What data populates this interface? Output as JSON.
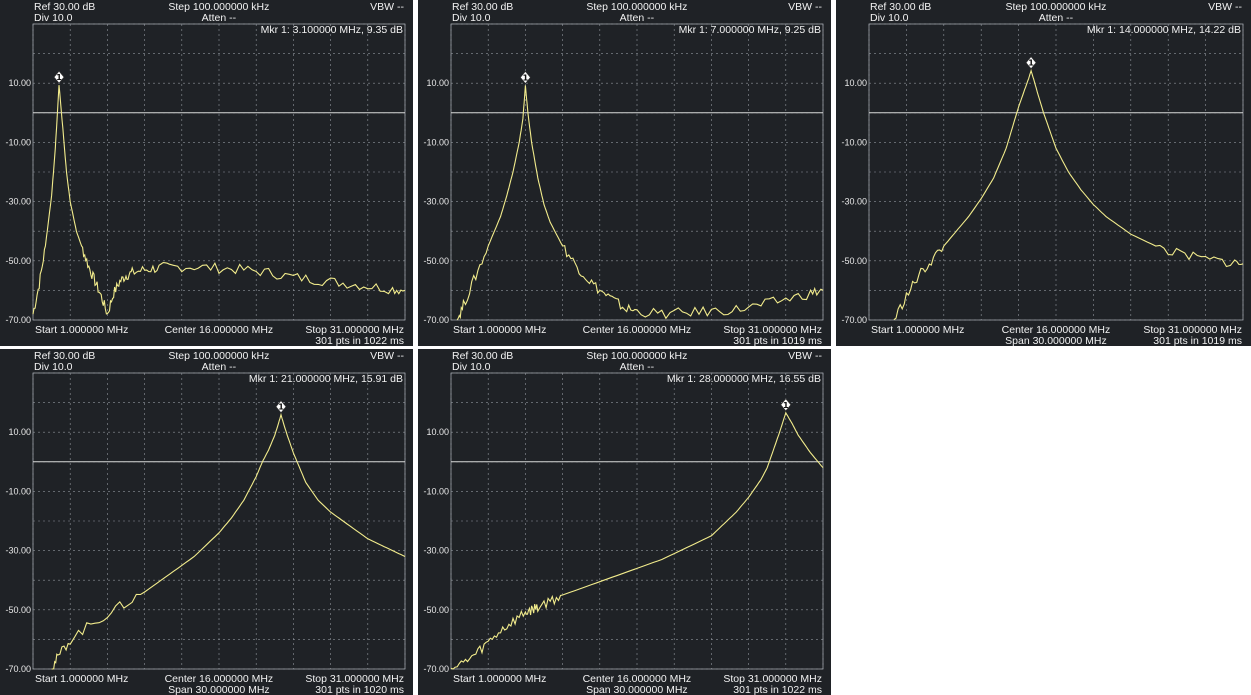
{
  "chart_data": [
    {
      "type": "line",
      "header": {
        "ref": "Ref 30.00 dB",
        "div": "Div 10.0",
        "step": "Step 100.000000 kHz",
        "atten": "Atten --",
        "vbw": "VBW --"
      },
      "marker_readout": "Mkr 1: 3.100000 MHz, 9.35 dB",
      "marker_label": "1",
      "marker": {
        "x": 3.1,
        "y": 9.35
      },
      "footer": {
        "start": "Start 1.000000 MHz",
        "center": "Center 16.000000 MHz",
        "stop": "Stop 31.000000 MHz",
        "span": "",
        "pts": "301 pts in 1022 ms"
      },
      "y_ticks": [
        "10.00",
        "-10.00",
        "-30.00",
        "-50.00",
        "-70.00"
      ],
      "xlim": [
        1,
        31
      ],
      "ylim": [
        -70,
        30
      ],
      "reference_line": 0,
      "series": [
        {
          "x": [
            1.0,
            1.5,
            2.0,
            2.5,
            2.8,
            3.1,
            3.4,
            3.7,
            4.0,
            4.5,
            5.0,
            5.5,
            6.0,
            6.5,
            7.0,
            7.5,
            8.0,
            8.5,
            9.0,
            10.0,
            11.0,
            12.0,
            14.0,
            16.0,
            18.0,
            20.0,
            22.0,
            24.0,
            26.0,
            28.0,
            30.0,
            31.0
          ],
          "y": [
            -68,
            -58,
            -45,
            -28,
            -12,
            9.35,
            -5,
            -20,
            -30,
            -40,
            -46,
            -52,
            -57,
            -62,
            -68,
            -61,
            -57,
            -55,
            -54,
            -53,
            -52.5,
            -52,
            -52,
            -52.5,
            -53,
            -54,
            -55.5,
            -56.5,
            -57.5,
            -58.5,
            -59.5,
            -60
          ]
        }
      ]
    },
    {
      "type": "line",
      "header": {
        "ref": "Ref 30.00 dB",
        "div": "Div 10.0",
        "step": "Step 100.000000 kHz",
        "atten": "Atten --",
        "vbw": "VBW --"
      },
      "marker_readout": "Mkr 1: 7.000000 MHz, 9.25 dB",
      "marker_label": "1",
      "marker": {
        "x": 7.0,
        "y": 9.25
      },
      "footer": {
        "start": "Start 1.000000 MHz",
        "center": "Center 16.000000 MHz",
        "stop": "Stop 31.000000 MHz",
        "span": "",
        "pts": "301 pts in 1019 ms"
      },
      "y_ticks": [
        "10.00",
        "-10.00",
        "-30.00",
        "-50.00",
        "-70.00"
      ],
      "xlim": [
        1,
        31
      ],
      "ylim": [
        -70,
        30
      ],
      "reference_line": 0,
      "series": [
        {
          "x": [
            1.5,
            2.0,
            3.0,
            4.0,
            5.0,
            5.5,
            6.0,
            6.5,
            6.8,
            7.0,
            7.2,
            7.5,
            8.0,
            8.5,
            9.0,
            10.0,
            11.0,
            12.0,
            13.0,
            14.0,
            15.0,
            16.0,
            18.0,
            20.0,
            22.0,
            24.0,
            26.0,
            28.0,
            30.0,
            31.0
          ],
          "y": [
            -70,
            -65,
            -55,
            -45,
            -35,
            -28,
            -20,
            -10,
            -2,
            9.25,
            0,
            -10,
            -22,
            -31,
            -37,
            -45,
            -51,
            -56,
            -60,
            -63,
            -66,
            -67,
            -68,
            -67.5,
            -67,
            -66.5,
            -65,
            -63,
            -61,
            -60
          ]
        }
      ]
    },
    {
      "type": "line",
      "header": {
        "ref": "Ref 30.00 dB",
        "div": "Div 10.0",
        "step": "Step 100.000000 kHz",
        "atten": "Atten --",
        "vbw": "VBW --"
      },
      "marker_readout": "Mkr 1: 14.000000 MHz, 14.22 dB",
      "marker_label": "1",
      "marker": {
        "x": 14.0,
        "y": 14.22
      },
      "footer": {
        "start": "Start 1.000000 MHz",
        "center": "Center 16.000000 MHz",
        "stop": "Stop 31.000000 MHz",
        "span": "Span 30.000000 MHz",
        "pts": "301 pts in 1019 ms"
      },
      "y_ticks": [
        "10.00",
        "-10.00",
        "-30.00",
        "-50.00",
        "-70.00"
      ],
      "xlim": [
        1,
        31
      ],
      "ylim": [
        -70,
        30
      ],
      "reference_line": 0,
      "series": [
        {
          "x": [
            3.0,
            4.0,
            5.0,
            6.0,
            7.0,
            8.0,
            9.0,
            10.0,
            11.0,
            12.0,
            12.5,
            13.0,
            13.5,
            13.8,
            14.0,
            14.2,
            14.5,
            15.0,
            15.5,
            16.0,
            17.0,
            18.0,
            19.0,
            20.0,
            22.0,
            24.0,
            26.0,
            28.0,
            30.0,
            31.0
          ],
          "y": [
            -70,
            -62,
            -55,
            -50,
            -45,
            -40,
            -35,
            -29,
            -22,
            -12,
            -5,
            2,
            8,
            11.5,
            14.22,
            11.5,
            7,
            0,
            -6,
            -12,
            -20,
            -26,
            -31,
            -35,
            -41,
            -45,
            -48,
            -49.5,
            -50.5,
            -51
          ]
        }
      ]
    },
    {
      "type": "line",
      "header": {
        "ref": "Ref 30.00 dB",
        "div": "Div 10.0",
        "step": "Step 100.000000 kHz",
        "atten": "Atten --",
        "vbw": "VBW --"
      },
      "marker_readout": "Mkr 1: 21.000000 MHz, 15.91 dB",
      "marker_label": "1",
      "marker": {
        "x": 21.0,
        "y": 15.91
      },
      "footer": {
        "start": "Start 1.000000 MHz",
        "center": "Center 16.000000 MHz",
        "stop": "Stop 31.000000 MHz",
        "span": "Span 30.000000 MHz",
        "pts": "301 pts in 1020 ms"
      },
      "y_ticks": [
        "10.00",
        "-10.00",
        "-30.00",
        "-50.00",
        "-70.00"
      ],
      "xlim": [
        1,
        31
      ],
      "ylim": [
        -70,
        30
      ],
      "reference_line": 0,
      "series": [
        {
          "x": [
            2.5,
            3.0,
            4.0,
            6.0,
            8.0,
            10.0,
            12.0,
            14.0,
            16.0,
            17.0,
            18.0,
            19.0,
            19.5,
            20.0,
            20.5,
            20.8,
            21.0,
            21.2,
            21.5,
            22.0,
            22.5,
            23.0,
            24.0,
            25.0,
            26.0,
            27.0,
            28.0,
            29.0,
            30.0,
            31.0
          ],
          "y": [
            -70,
            -66,
            -60,
            -54,
            -49,
            -44,
            -38,
            -32,
            -24,
            -19,
            -13,
            -5,
            0,
            4,
            9,
            13,
            15.91,
            13,
            9,
            3,
            -2,
            -7,
            -13,
            -17,
            -20,
            -23,
            -26,
            -28,
            -30,
            -32
          ]
        }
      ]
    },
    {
      "type": "line",
      "header": {
        "ref": "Ref 30.00 dB",
        "div": "Div 10.0",
        "step": "Step 100.000000 kHz",
        "atten": "Atten --",
        "vbw": "VBW --"
      },
      "marker_readout": "Mkr 1: 28.000000 MHz, 16.55 dB",
      "marker_label": "1",
      "marker": {
        "x": 28.0,
        "y": 16.55
      },
      "footer": {
        "start": "Start 1.000000 MHz",
        "center": "Center 16.000000 MHz",
        "stop": "Stop 31.000000 MHz",
        "span": "Span 30.000000 MHz",
        "pts": "301 pts in 1022 ms"
      },
      "y_ticks": [
        "10.00",
        "-10.00",
        "-30.00",
        "-50.00",
        "-70.00"
      ],
      "xlim": [
        1,
        31
      ],
      "ylim": [
        -70,
        30
      ],
      "reference_line": 0,
      "series": [
        {
          "x": [
            1.0,
            2.0,
            3.0,
            4.0,
            5.0,
            6.0,
            7.0,
            7.5,
            8.0,
            9.0,
            10.0,
            12.0,
            14.0,
            16.0,
            18.0,
            20.0,
            22.0,
            23.0,
            24.0,
            25.0,
            26.0,
            26.5,
            27.0,
            27.5,
            28.0,
            28.5,
            29.0,
            30.0,
            31.0
          ],
          "y": [
            -70,
            -68,
            -65,
            -61,
            -57,
            -54,
            -51,
            -50,
            -49,
            -47,
            -45,
            -42,
            -39,
            -36,
            -33,
            -29,
            -25,
            -21,
            -17,
            -12,
            -6,
            -2,
            4,
            10,
            16.55,
            13,
            9,
            3,
            -2
          ]
        }
      ]
    }
  ]
}
